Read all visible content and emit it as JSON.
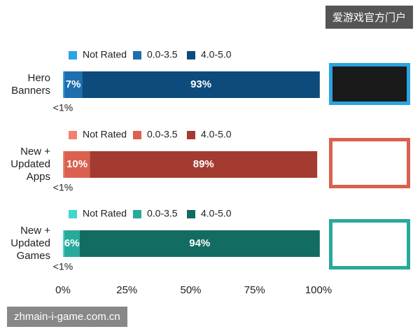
{
  "chart_data": [
    {
      "type": "bar",
      "orientation": "horizontal",
      "stacked": true,
      "categories": [
        "Hero Banners"
      ],
      "series": [
        {
          "name": "Not Rated",
          "color": "#2aa4e2",
          "values": [
            0.5
          ],
          "value_labels": [
            "<1%"
          ]
        },
        {
          "name": "0.0-3.5",
          "color": "#1d6fae",
          "values": [
            7
          ],
          "value_labels": [
            "7%"
          ]
        },
        {
          "name": "4.0-5.0",
          "color": "#0c4b7c",
          "values": [
            93
          ],
          "value_labels": [
            "93%"
          ]
        }
      ]
    },
    {
      "type": "bar",
      "orientation": "horizontal",
      "stacked": true,
      "categories": [
        "New + Updated Apps"
      ],
      "series": [
        {
          "name": "Not Rated",
          "color": "#f2806f",
          "values": [
            0.5
          ],
          "value_labels": [
            "<1%"
          ]
        },
        {
          "name": "0.0-3.5",
          "color": "#da614f",
          "values": [
            10
          ],
          "value_labels": [
            "10%"
          ]
        },
        {
          "name": "4.0-5.0",
          "color": "#a33b31",
          "values": [
            89
          ],
          "value_labels": [
            "89%"
          ]
        }
      ]
    },
    {
      "type": "bar",
      "orientation": "horizontal",
      "stacked": true,
      "categories": [
        "New + Updated Games"
      ],
      "series": [
        {
          "name": "Not Rated",
          "color": "#3fd8cd",
          "values": [
            0.5
          ],
          "value_labels": [
            "<1%"
          ]
        },
        {
          "name": "0.0-3.5",
          "color": "#27a99b",
          "values": [
            6
          ],
          "value_labels": [
            "6%"
          ]
        },
        {
          "name": "4.0-5.0",
          "color": "#126c61",
          "values": [
            94
          ],
          "value_labels": [
            "94%"
          ]
        }
      ],
      "xlim": [
        0,
        100
      ],
      "xticks": [
        {
          "value": 0,
          "label": "0%"
        },
        {
          "value": 25,
          "label": "25%"
        },
        {
          "value": 50,
          "label": "50%"
        },
        {
          "value": 75,
          "label": "75%"
        },
        {
          "value": 100,
          "label": "100%"
        }
      ]
    }
  ],
  "watermarks": {
    "top": "爱游戏官方门户",
    "bottom": "zhmain-i-game.com.cn"
  }
}
